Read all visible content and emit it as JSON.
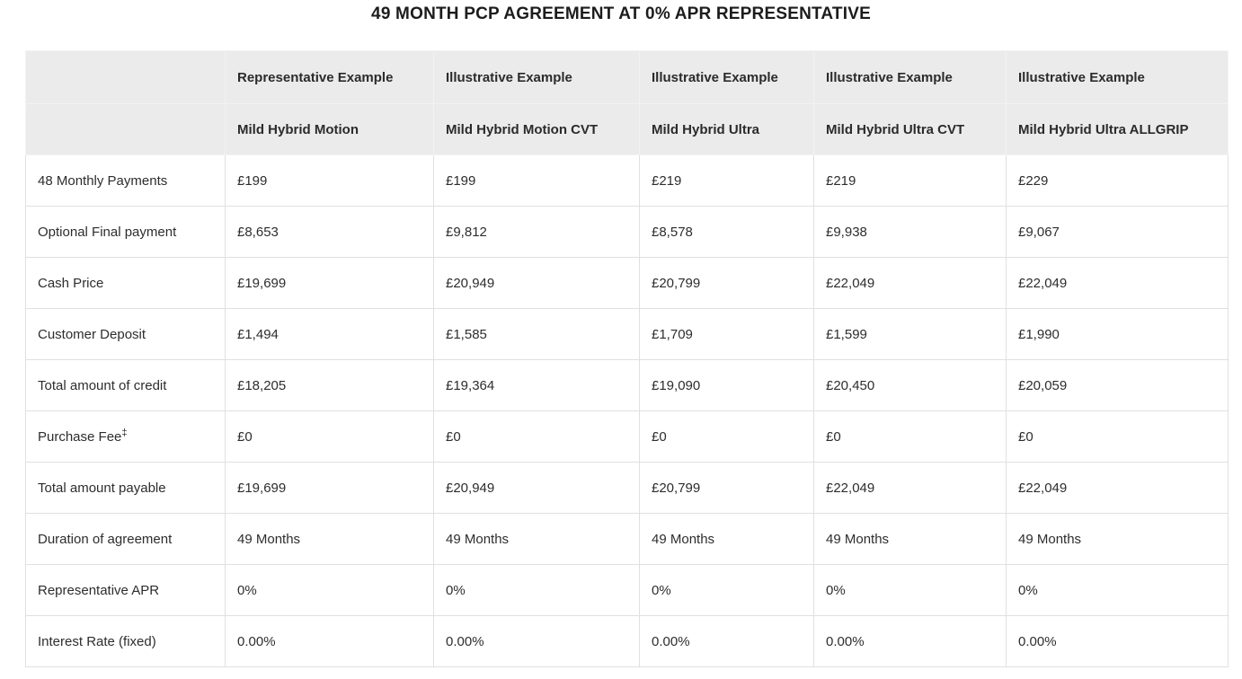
{
  "page": {
    "title": "49 MONTH PCP AGREEMENT AT 0% APR REPRESENTATIVE"
  },
  "colors": {
    "header_background": "#ebebeb",
    "header_divider": "#f2f2f2",
    "cell_border": "#e0e0e0",
    "text": "#2d2d2d",
    "title_text": "#1c1c1c"
  },
  "table": {
    "header": {
      "example_row": [
        "",
        "Representative Example",
        "Illustrative Example",
        "Illustrative Example",
        "Illustrative Example",
        "Illustrative Example"
      ],
      "model_row": [
        "",
        "Mild Hybrid Motion",
        "Mild Hybrid Motion CVT",
        "Mild Hybrid Ultra",
        "Mild Hybrid Ultra CVT",
        "Mild Hybrid Ultra ALLGRIP"
      ]
    },
    "rows": [
      {
        "label": "48 Monthly Payments",
        "values": [
          "£199",
          "£199",
          "£219",
          "£219",
          "£229"
        ]
      },
      {
        "label": "Optional Final payment",
        "values": [
          "£8,653",
          "£9,812",
          "£8,578",
          "£9,938",
          "£9,067"
        ]
      },
      {
        "label": "Cash Price",
        "values": [
          "£19,699",
          "£20,949",
          "£20,799",
          "£22,049",
          "£22,049"
        ]
      },
      {
        "label": "Customer Deposit",
        "values": [
          "£1,494",
          "£1,585",
          "£1,709",
          "£1,599",
          "£1,990"
        ]
      },
      {
        "label": "Total amount of credit",
        "values": [
          "£18,205",
          "£19,364",
          "£19,090",
          "£20,450",
          "£20,059"
        ]
      },
      {
        "label": "Purchase Fee",
        "label_sup": "‡",
        "values": [
          "£0",
          "£0",
          "£0",
          "£0",
          "£0"
        ]
      },
      {
        "label": "Total amount payable",
        "values": [
          "£19,699",
          "£20,949",
          "£20,799",
          "£22,049",
          "£22,049"
        ]
      },
      {
        "label": "Duration of agreement",
        "values": [
          "49 Months",
          "49 Months",
          "49 Months",
          "49 Months",
          "49 Months"
        ]
      },
      {
        "label": "Representative APR",
        "values": [
          "0%",
          "0%",
          "0%",
          "0%",
          "0%"
        ]
      },
      {
        "label": "Interest Rate (fixed)",
        "values": [
          "0.00%",
          "0.00%",
          "0.00%",
          "0.00%",
          "0.00%"
        ]
      }
    ]
  }
}
